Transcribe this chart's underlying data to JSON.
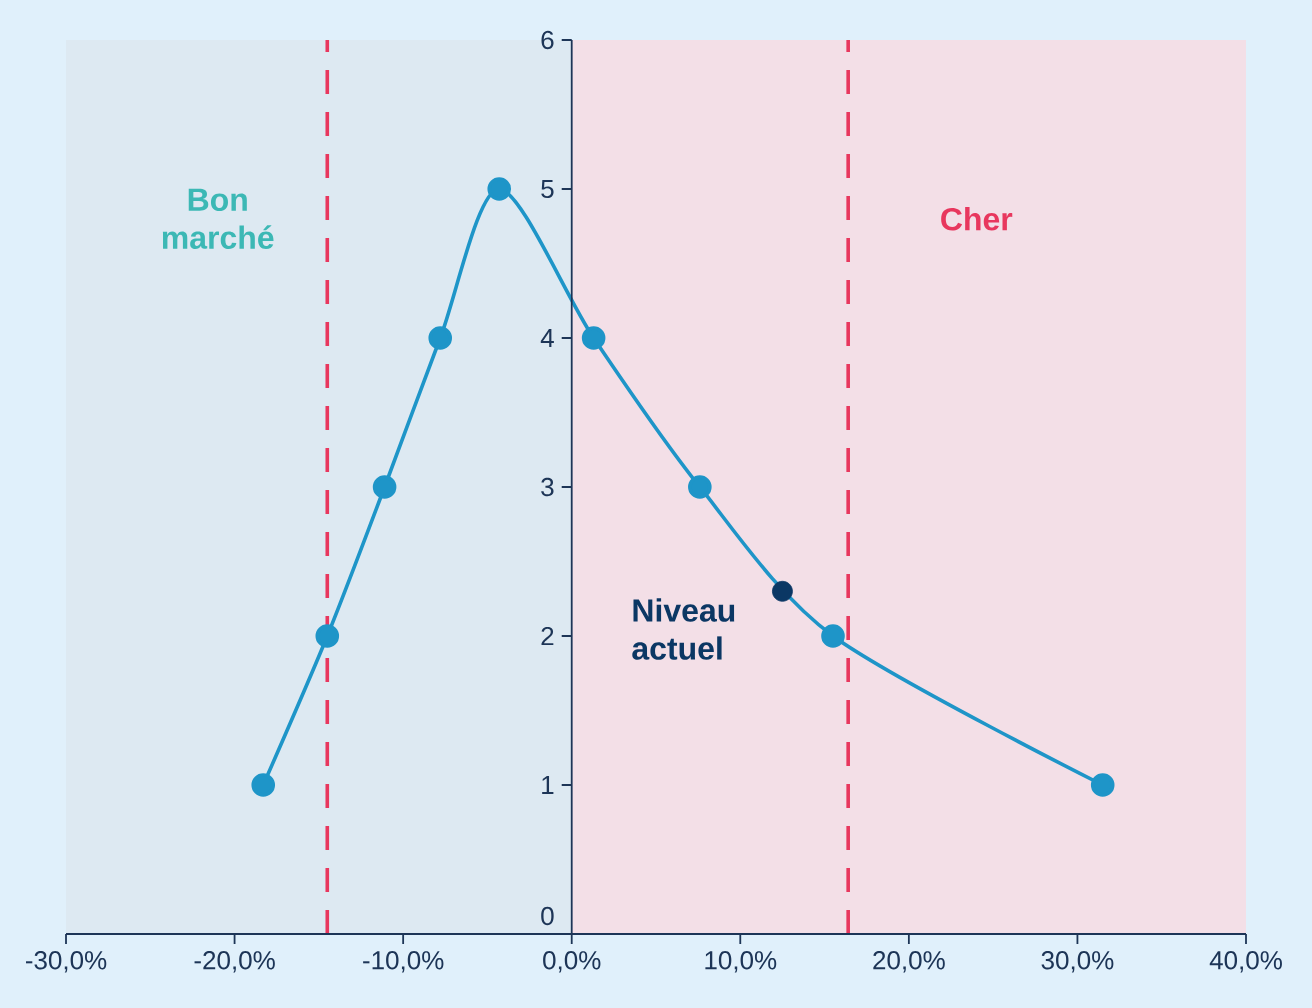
{
  "chart_data": {
    "type": "line",
    "xlim": [
      -30,
      40
    ],
    "ylim": [
      0,
      6
    ],
    "xticks": [
      {
        "value": -30,
        "label": "-30,0%"
      },
      {
        "value": -20,
        "label": "-20,0%"
      },
      {
        "value": -10,
        "label": "-10,0%"
      },
      {
        "value": 0,
        "label": "0,0%"
      },
      {
        "value": 10,
        "label": "10,0%"
      },
      {
        "value": 20,
        "label": "20,0%"
      },
      {
        "value": 30,
        "label": "30,0%"
      },
      {
        "value": 40,
        "label": "40,0%"
      }
    ],
    "yticks": [
      0,
      1,
      2,
      3,
      4,
      5,
      6
    ],
    "series": [
      {
        "color": "#1e95c8",
        "x": [
          -18.3,
          -14.5,
          -11.1,
          -7.8,
          -4.3,
          1.3,
          7.6,
          15.5,
          31.5
        ],
        "values": [
          1,
          2,
          3,
          4,
          5,
          4,
          3,
          2,
          1
        ]
      },
      {
        "type": "scatter",
        "color": "#0b3764",
        "x": [
          12.5
        ],
        "values": [
          2.3
        ]
      }
    ],
    "ref_lines": [
      {
        "axis": "x",
        "value": -14.5,
        "color": "#e8375e",
        "line_style": "dashed"
      },
      {
        "axis": "x",
        "value": 16.4,
        "color": "#e8375e",
        "line_style": "dashed"
      }
    ],
    "bands": [
      {
        "axis": "x",
        "from": -30,
        "to": 0,
        "label": "Bon marché",
        "color": "#dde9f2"
      },
      {
        "axis": "x",
        "from": 0,
        "to": 40,
        "label": "Cher",
        "color": "#f3dfe7"
      }
    ],
    "annotations": [
      {
        "text": "Niveau actuel",
        "x": 12.5,
        "y": 2.3
      }
    ],
    "marker": "circle",
    "line_style": "solid"
  }
}
